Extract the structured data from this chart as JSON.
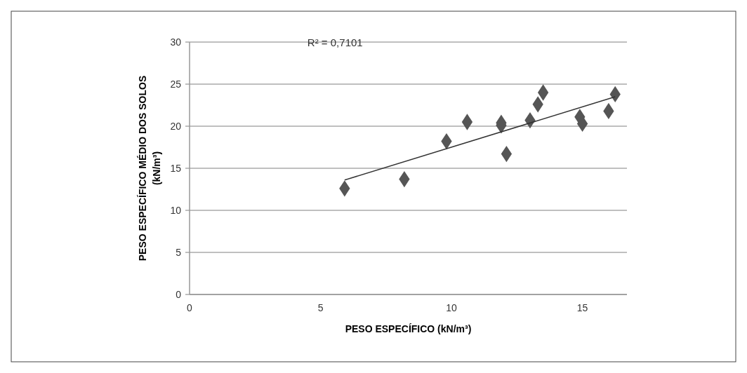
{
  "chart_data": {
    "type": "scatter",
    "xlabel": "PESO ESPECÍFICO (kN/m³)",
    "ylabel": "PESO ESPECÍFICO MÉDIO DOS SOLOS (kN/m³)",
    "xlim": [
      0,
      16.7
    ],
    "xticks": [
      0,
      5,
      10,
      15
    ],
    "ylim": [
      0,
      30
    ],
    "yticks": [
      0,
      5,
      10,
      15,
      20,
      25,
      30
    ],
    "grid": "y",
    "annotations": [
      "R² = 0,7101"
    ],
    "series": [
      {
        "marker": "diamond",
        "color": "#555555",
        "x": [
          5.92,
          8.2,
          9.81,
          10.6,
          11.9,
          11.9,
          12.1,
          13.0,
          13.3,
          13.5,
          14.9,
          15.0,
          16.0,
          16.25
        ],
        "values": [
          12.6,
          13.7,
          18.2,
          20.5,
          20.4,
          20.1,
          16.7,
          20.7,
          22.6,
          24.0,
          21.1,
          20.3,
          21.8,
          23.8
        ]
      },
      {
        "type": "line",
        "marker": "none",
        "color": "#333333",
        "x": [
          5.92,
          16.25
        ],
        "values": [
          13.6,
          23.5
        ]
      }
    ]
  }
}
